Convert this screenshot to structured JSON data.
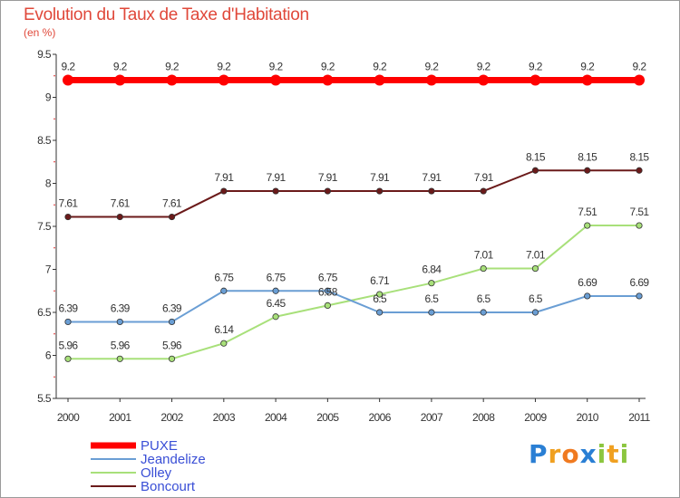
{
  "header": {
    "title": "Evolution du Taux de Taxe d'Habitation",
    "unit": "(en %)"
  },
  "logo": {
    "text": "Proxiti",
    "letters": [
      "P",
      "r",
      "o",
      "x",
      "i",
      "t",
      "i"
    ],
    "colors": [
      "#2a7fd4",
      "#f0a020",
      "#f07a20",
      "#2a7fd4",
      "#8cc63f",
      "#f0a020",
      "#8cc63f"
    ]
  },
  "chart_data": {
    "type": "line",
    "x": [
      2000,
      2001,
      2002,
      2003,
      2004,
      2005,
      2006,
      2007,
      2008,
      2009,
      2010,
      2011
    ],
    "ylim": [
      5.5,
      9.5
    ],
    "yticks": [
      5.5,
      6,
      6.5,
      7,
      7.5,
      8,
      8.5,
      9,
      9.5
    ],
    "grid": false,
    "legend_position": "bottom-left",
    "series": [
      {
        "name": "PUXE",
        "color": "#ff0000",
        "values": [
          9.2,
          9.2,
          9.2,
          9.2,
          9.2,
          9.2,
          9.2,
          9.2,
          9.2,
          9.2,
          9.2,
          9.2
        ],
        "labels": [
          "9.2",
          "9.2",
          "9.2",
          "9.2",
          "9.2",
          "9.2",
          "9.2",
          "9.2",
          "9.2",
          "9.2",
          "9.2",
          "9.2"
        ]
      },
      {
        "name": "Jeandelize",
        "color": "#6a9ed4",
        "values": [
          6.39,
          6.39,
          6.39,
          6.75,
          6.75,
          6.75,
          6.5,
          6.5,
          6.5,
          6.5,
          6.69,
          6.69
        ],
        "labels": [
          "6.39",
          "6.39",
          "6.39",
          "6.75",
          "6.75",
          "6.75",
          "6.5",
          "6.5",
          "6.5",
          "6.5",
          "6.69",
          "6.69"
        ]
      },
      {
        "name": "Olley",
        "color": "#a8e07a",
        "values": [
          5.96,
          5.96,
          5.96,
          6.14,
          6.45,
          6.58,
          6.71,
          6.84,
          7.01,
          7.01,
          7.51,
          7.51
        ],
        "labels": [
          "5.96",
          "5.96",
          "5.96",
          "6.14",
          "6.45",
          "6.58",
          "6.71",
          "6.84",
          "7.01",
          "7.01",
          "7.51",
          "7.51"
        ]
      },
      {
        "name": "Boncourt",
        "color": "#6b1a1a",
        "values": [
          7.61,
          7.61,
          7.61,
          7.91,
          7.91,
          7.91,
          7.91,
          7.91,
          7.91,
          8.15,
          8.15,
          8.15
        ],
        "labels": [
          "7.61",
          "7.61",
          "7.61",
          "7.91",
          "7.91",
          "7.91",
          "7.91",
          "7.91",
          "7.91",
          "8.15",
          "8.15",
          "8.15"
        ]
      }
    ]
  }
}
